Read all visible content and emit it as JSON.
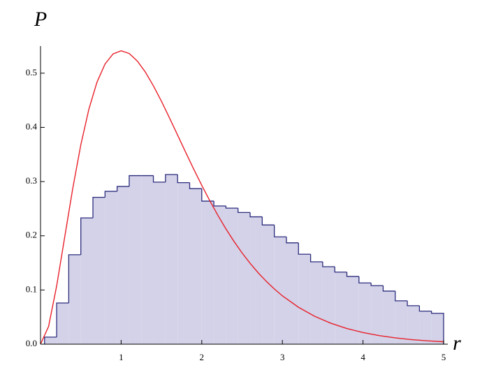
{
  "chart_data": {
    "type": "histogram",
    "x_label": "r",
    "y_label": "P",
    "xlim": [
      0,
      5
    ],
    "ylim": [
      0,
      0.55
    ],
    "xticks": [
      1,
      2,
      3,
      4,
      5
    ],
    "yticks": [
      {
        "value": 0,
        "label": "0.0"
      },
      0.1,
      0.2,
      0.3,
      0.4,
      0.5
    ],
    "series": [
      {
        "type": "histogram",
        "color": "#d3d2e8",
        "edge_color": "#2b2b7d",
        "bins": [
          0.05,
          0.2,
          0.35,
          0.5,
          0.65,
          0.8,
          0.95,
          1.1,
          1.25,
          1.4,
          1.55,
          1.7,
          1.85,
          2.0,
          2.15,
          2.3,
          2.45,
          2.6,
          2.75,
          2.9,
          3.05,
          3.2,
          3.35,
          3.5,
          3.65,
          3.8,
          3.95,
          4.1,
          4.25,
          4.4,
          4.55,
          4.7,
          4.85,
          5.0
        ],
        "values": [
          0.013,
          0.076,
          0.165,
          0.233,
          0.271,
          0.282,
          0.291,
          0.311,
          0.311,
          0.299,
          0.313,
          0.298,
          0.287,
          0.264,
          0.255,
          0.251,
          0.243,
          0.235,
          0.22,
          0.198,
          0.187,
          0.166,
          0.152,
          0.143,
          0.133,
          0.125,
          0.113,
          0.108,
          0.098,
          0.08,
          0.071,
          0.061,
          0.057
        ]
      },
      {
        "type": "line",
        "color": "#e8202a",
        "x": [
          0,
          0.1,
          0.2,
          0.3,
          0.4,
          0.5,
          0.6,
          0.7,
          0.8,
          0.9,
          1.0,
          1.1,
          1.2,
          1.3,
          1.4,
          1.5,
          1.6,
          1.7,
          1.8,
          1.9,
          2.0,
          2.1,
          2.2,
          2.3,
          2.4,
          2.5,
          2.6,
          2.7,
          2.8,
          2.9,
          3.0,
          3.2,
          3.4,
          3.6,
          3.8,
          4.0,
          4.2,
          4.4,
          4.6,
          4.8,
          5.0
        ],
        "values": [
          0,
          0.0327,
          0.1073,
          0.1976,
          0.2876,
          0.3679,
          0.4337,
          0.4833,
          0.5169,
          0.5356,
          0.5413,
          0.5364,
          0.5225,
          0.5021,
          0.4767,
          0.4481,
          0.4174,
          0.3858,
          0.3541,
          0.323,
          0.2931,
          0.2646,
          0.2377,
          0.2127,
          0.1896,
          0.1684,
          0.1492,
          0.1317,
          0.116,
          0.1019,
          0.0892,
          0.0681,
          0.0515,
          0.0387,
          0.0289,
          0.0215,
          0.0159,
          0.0117,
          0.0085,
          0.0062,
          0.0045
        ]
      }
    ]
  }
}
